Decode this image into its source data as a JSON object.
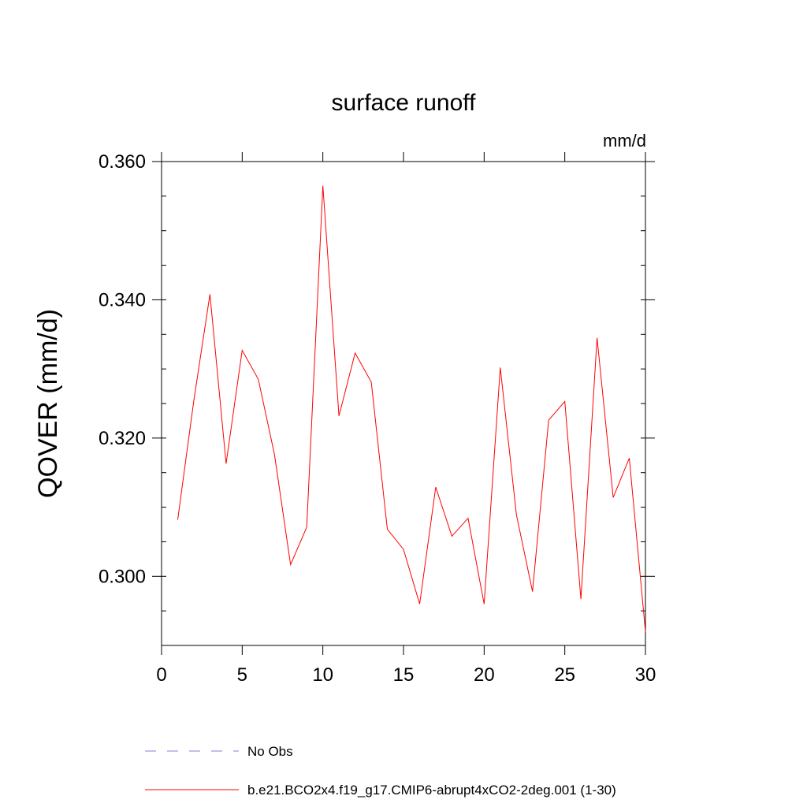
{
  "chart_data": {
    "type": "line",
    "title": "surface runoff",
    "units": "mm/d",
    "ylabel": "QOVER  (mm/d)",
    "xlabel": "",
    "xlim": [
      0,
      30
    ],
    "ylim": [
      0.29,
      0.36
    ],
    "xticks": [
      0,
      5,
      10,
      15,
      20,
      25,
      30
    ],
    "xtick_labels": [
      "0",
      "5",
      "10",
      "15",
      "20",
      "25",
      "30"
    ],
    "yticks": [
      0.3,
      0.32,
      0.34,
      0.36
    ],
    "ytick_labels": [
      "0.300",
      "0.320",
      "0.340",
      "0.360"
    ],
    "grid": false,
    "legend_position": "bottom",
    "series": [
      {
        "name": "No Obs",
        "style": "dashed",
        "color": "#8a7fd6",
        "x": [],
        "values": []
      },
      {
        "name": "b.e21.BCO2x4.f19_g17.CMIP6-abrupt4xCO2-2deg.001 (1-30)",
        "style": "solid",
        "color": "#ff0000",
        "x": [
          1,
          2,
          3,
          4,
          5,
          6,
          7,
          8,
          9,
          10,
          11,
          12,
          13,
          14,
          15,
          16,
          17,
          18,
          19,
          20,
          21,
          22,
          23,
          24,
          25,
          26,
          27,
          28,
          29,
          30
        ],
        "values": [
          0.3082,
          0.3254,
          0.3408,
          0.3163,
          0.3327,
          0.3285,
          0.3176,
          0.3017,
          0.3071,
          0.3565,
          0.3232,
          0.3323,
          0.3281,
          0.3068,
          0.3039,
          0.296,
          0.3129,
          0.3058,
          0.3084,
          0.296,
          0.3302,
          0.3089,
          0.2978,
          0.3226,
          0.3253,
          0.2967,
          0.3345,
          0.3114,
          0.3171,
          0.292
        ]
      }
    ]
  }
}
